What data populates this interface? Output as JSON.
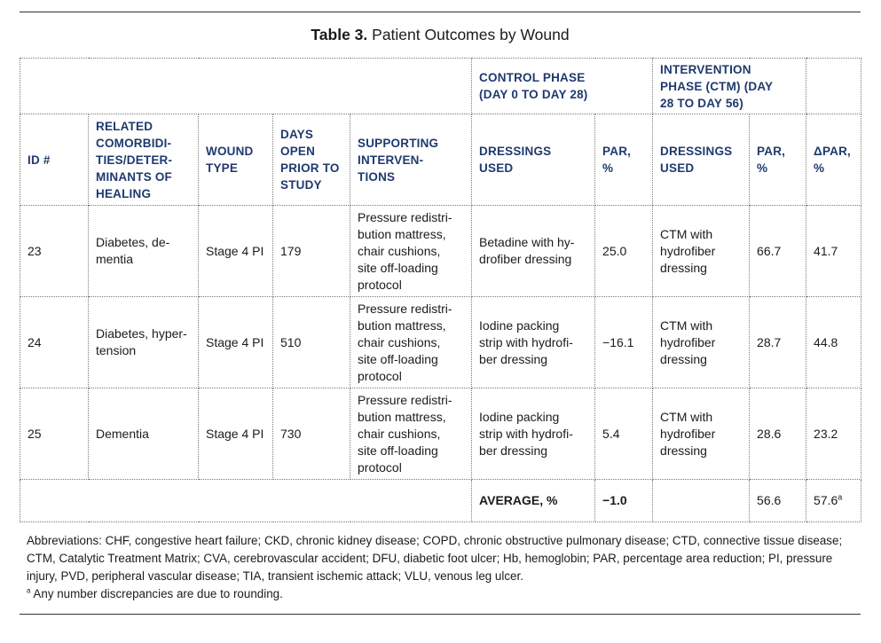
{
  "title": {
    "label": "Table 3.",
    "text": " Patient Outcomes by Wound"
  },
  "groups": {
    "control": [
      "CONTROL PHASE",
      "(DAY 0 TO DAY 28)"
    ],
    "intervention": [
      "INTERVENTION",
      "PHASE (CTM) (DAY",
      "28 TO DAY 56)"
    ]
  },
  "headers": {
    "id": [
      "ID #"
    ],
    "comorbidities": [
      "RELATED",
      "COMORBIDI-",
      "TIES/DETER-",
      "MINANTS OF",
      "HEALING"
    ],
    "wound_type": [
      "WOUND",
      "TYPE"
    ],
    "days_open": [
      "DAYS",
      "OPEN",
      "PRIOR TO",
      "STUDY"
    ],
    "supporting": [
      "SUPPORTING",
      "INTERVEN-",
      "TIONS"
    ],
    "ctrl_dressings": [
      "DRESSINGS",
      "USED"
    ],
    "ctrl_par": [
      "PAR,",
      "%"
    ],
    "int_dressings": [
      "DRESSINGS",
      "USED"
    ],
    "int_par": [
      "PAR,",
      "%"
    ],
    "delta_par": [
      "ΔPAR,",
      "%"
    ]
  },
  "rows": [
    {
      "id": "23",
      "comorbidities": [
        "Diabetes, de-",
        "mentia"
      ],
      "wound_type": "Stage 4 PI",
      "days_open": "179",
      "supporting": [
        "Pressure redistri-",
        "bution mattress,",
        "chair cushions,",
        "site off-loading",
        "protocol"
      ],
      "ctrl_dressings": [
        "Betadine with hy-",
        "drofiber dressing"
      ],
      "ctrl_par": "25.0",
      "int_dressings": [
        "CTM with",
        "hydrofiber",
        "dressing"
      ],
      "int_par": "66.7",
      "delta_par": "41.7"
    },
    {
      "id": "24",
      "comorbidities": [
        "Diabetes, hyper-",
        "tension"
      ],
      "wound_type": "Stage 4 PI",
      "days_open": "510",
      "supporting": [
        "Pressure redistri-",
        "bution mattress,",
        "chair cushions,",
        "site off-loading",
        "protocol"
      ],
      "ctrl_dressings": [
        "Iodine packing",
        "strip with hydrofi-",
        "ber dressing"
      ],
      "ctrl_par": "−16.1",
      "int_dressings": [
        "CTM with",
        "hydrofiber",
        "dressing"
      ],
      "int_par": "28.7",
      "delta_par": "44.8"
    },
    {
      "id": "25",
      "comorbidities": [
        "Dementia"
      ],
      "wound_type": "Stage 4 PI",
      "days_open": "730",
      "supporting": [
        "Pressure redistri-",
        "bution mattress,",
        "chair cushions,",
        "site off-loading",
        "protocol"
      ],
      "ctrl_dressings": [
        "Iodine packing",
        "strip with hydrofi-",
        "ber dressing"
      ],
      "ctrl_par": "5.4",
      "int_dressings": [
        "CTM with",
        "hydrofiber",
        "dressing"
      ],
      "int_par": "28.6",
      "delta_par": "23.2"
    }
  ],
  "average": {
    "label": "AVERAGE, %",
    "ctrl_par": "−1.0",
    "int_par": "56.6",
    "delta_par": "57.6",
    "delta_sup": "a"
  },
  "notes": {
    "abbreviations": "Abbreviations: CHF, congestive heart failure; CKD, chronic kidney disease; COPD, chronic obstructive pulmonary disease; CTD, connective tissue disease; CTM, Catalytic Treatment Matrix; CVA, cerebrovascular accident; DFU, diabetic foot ulcer; Hb, hemoglobin; PAR, percentage area reduction; PI, pressure injury, PVD, peripheral vascular disease; TIA, transient ischemic attack; VLU, venous leg ulcer.",
    "footnote_mark": "a",
    "footnote": " Any number discrepancies are due to rounding."
  },
  "colors": {
    "header_text": "#1f3a6e",
    "body_text": "#1b1b1b",
    "rule": "#333333"
  }
}
